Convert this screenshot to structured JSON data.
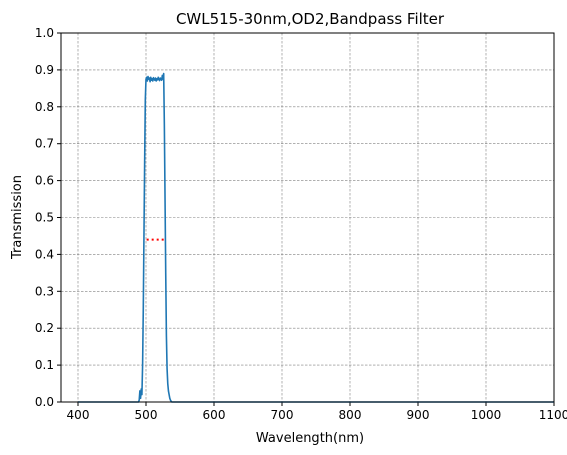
{
  "chart_data": {
    "type": "line",
    "title": "CWL515-30nm,OD2,Bandpass Filter",
    "xlabel": "Wavelength(nm)",
    "ylabel": "Transmission",
    "xlim": [
      375,
      1100
    ],
    "ylim": [
      0,
      1.0
    ],
    "xticks": [
      400,
      500,
      600,
      700,
      800,
      900,
      1000,
      1100
    ],
    "yticks": [
      0.0,
      0.1,
      0.2,
      0.3,
      0.4,
      0.5,
      0.6,
      0.7,
      0.8,
      0.9,
      1.0
    ],
    "ytick_labels": [
      "0.0",
      "0.1",
      "0.2",
      "0.3",
      "0.4",
      "0.5",
      "0.6",
      "0.7",
      "0.8",
      "0.9",
      "1.0"
    ],
    "grid": true,
    "series": [
      {
        "color": "#1f77b4",
        "x": [
          400,
          489,
          490,
          491,
          492,
          493,
          494,
          495,
          496,
          497,
          498,
          499,
          500,
          501,
          502,
          503,
          504,
          505,
          506,
          507,
          508,
          509,
          510,
          511,
          512,
          513,
          514,
          515,
          516,
          517,
          518,
          519,
          520,
          521,
          522,
          523,
          524,
          525,
          526,
          527,
          528,
          529,
          530,
          531,
          532,
          533,
          534,
          535,
          536,
          537,
          538,
          540,
          550,
          1100
        ],
        "y": [
          0.0,
          0.0,
          0.005,
          0.03,
          0.01,
          0.035,
          0.02,
          0.1,
          0.25,
          0.45,
          0.65,
          0.82,
          0.875,
          0.88,
          0.87,
          0.882,
          0.875,
          0.878,
          0.868,
          0.88,
          0.872,
          0.876,
          0.87,
          0.879,
          0.874,
          0.872,
          0.878,
          0.87,
          0.876,
          0.873,
          0.88,
          0.874,
          0.871,
          0.878,
          0.875,
          0.872,
          0.885,
          0.875,
          0.89,
          0.75,
          0.55,
          0.35,
          0.18,
          0.09,
          0.05,
          0.03,
          0.02,
          0.01,
          0.005,
          0.002,
          0.0,
          0.0,
          0.0,
          0.0
        ]
      }
    ],
    "annotations": [
      {
        "type": "dotted-line",
        "color": "#ff0000",
        "x": [
          501,
          528
        ],
        "y": 0.44
      }
    ]
  }
}
